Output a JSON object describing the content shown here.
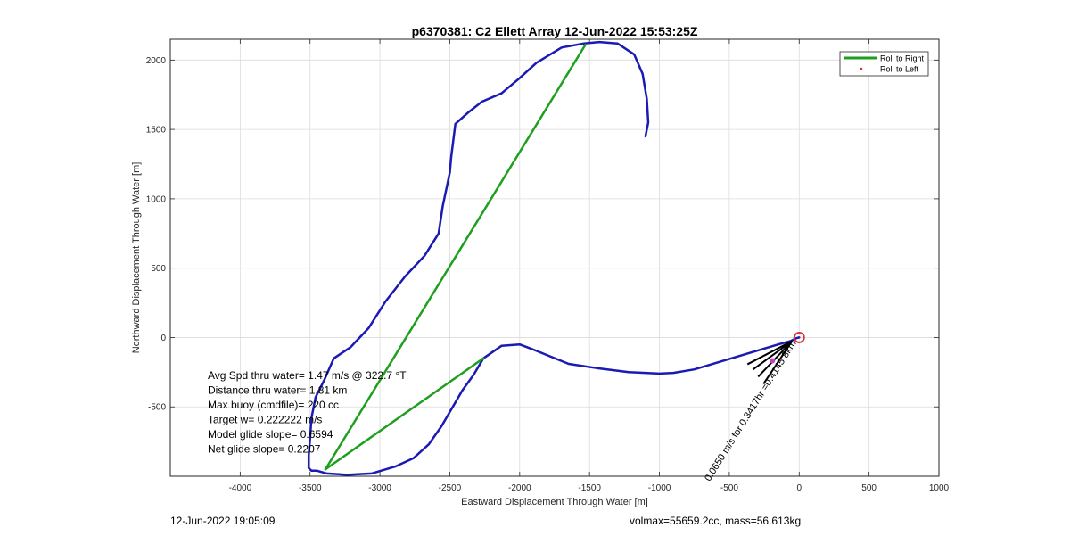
{
  "chart_data": {
    "type": "line",
    "title": "p6370381: C2 Ellett Array 12-Jun-2022 15:53:25Z",
    "xlabel": "Eastward Displacement Through Water [m]",
    "ylabel": "Northward Displacement Through Water [m]",
    "xlim": [
      -4500,
      1000
    ],
    "ylim": [
      -1000,
      2150
    ],
    "xticks": [
      -4000,
      -3500,
      -3000,
      -2500,
      -2000,
      -1500,
      -1000,
      -500,
      0,
      500,
      1000
    ],
    "yticks": [
      -500,
      0,
      500,
      1000,
      1500,
      2000
    ],
    "grid": true,
    "legend_position": "top-right",
    "legend": [
      {
        "label": "Roll to Right",
        "color": "#1ea01e",
        "marker": "line"
      },
      {
        "label": "Roll to Left",
        "color": "#e0303a",
        "marker": "dot"
      }
    ],
    "track": {
      "color": "#1a1ab4",
      "x": [
        -1100,
        -1080,
        -1090,
        -1120,
        -1180,
        -1300,
        -1430,
        -1540,
        -1700,
        -1880,
        -2000,
        -2130,
        -2270,
        -2370,
        -2460,
        -2490,
        -2500,
        -2550,
        -2580,
        -2680,
        -2820,
        -2960,
        -3080,
        -3210,
        -3330,
        -3400,
        -3460,
        -3490,
        -3500,
        -3510,
        -3510,
        -3490,
        -3450,
        -3380,
        -3230,
        -3060,
        -2890,
        -2760,
        -2650,
        -2560,
        -2490,
        -2410,
        -2330,
        -2260,
        -2130,
        -2000,
        -1920,
        -1650,
        -1450,
        -1220,
        -1000,
        -900,
        -750,
        -450,
        -150,
        -60,
        -20,
        0
      ],
      "y": [
        1450,
        1550,
        1720,
        1900,
        2040,
        2120,
        2130,
        2120,
        2090,
        1980,
        1870,
        1760,
        1700,
        1620,
        1540,
        1300,
        1190,
        950,
        750,
        590,
        440,
        260,
        70,
        -70,
        -150,
        -310,
        -430,
        -580,
        -730,
        -850,
        -940,
        -960,
        -960,
        -980,
        -990,
        -980,
        -930,
        -870,
        -770,
        -640,
        -520,
        -380,
        -270,
        -150,
        -60,
        -50,
        -80,
        -190,
        -220,
        -250,
        -260,
        -255,
        -230,
        -140,
        -50,
        -25,
        -5,
        0
      ]
    },
    "roll_segments": [
      {
        "x": [
          -1530,
          -3390
        ],
        "y": [
          2110,
          -950
        ]
      },
      {
        "x": [
          -3390,
          -2260
        ],
        "y": [
          -950,
          -150
        ]
      }
    ],
    "start_marker": {
      "x": 0,
      "y": 0,
      "color": "#e0303a"
    },
    "stats": [
      "Avg Spd thru water=  1.47 m/s @ 322.7 °T",
      "Distance thru water= 1.81 km",
      "Max buoy (cmdfile)= 220 cc",
      "Target w= 0.222222 m/s",
      "Model glide slope= 0.6594",
      "Net glide slope= 0.2207"
    ],
    "rotated_annotation": "0.0650 m/s for 0.3417hr =0.4145 8km"
  },
  "footer": {
    "timestamp": "12-Jun-2022 19:05:09",
    "volume_mass": "volmax=55659.2cc, mass=56.613kg"
  }
}
